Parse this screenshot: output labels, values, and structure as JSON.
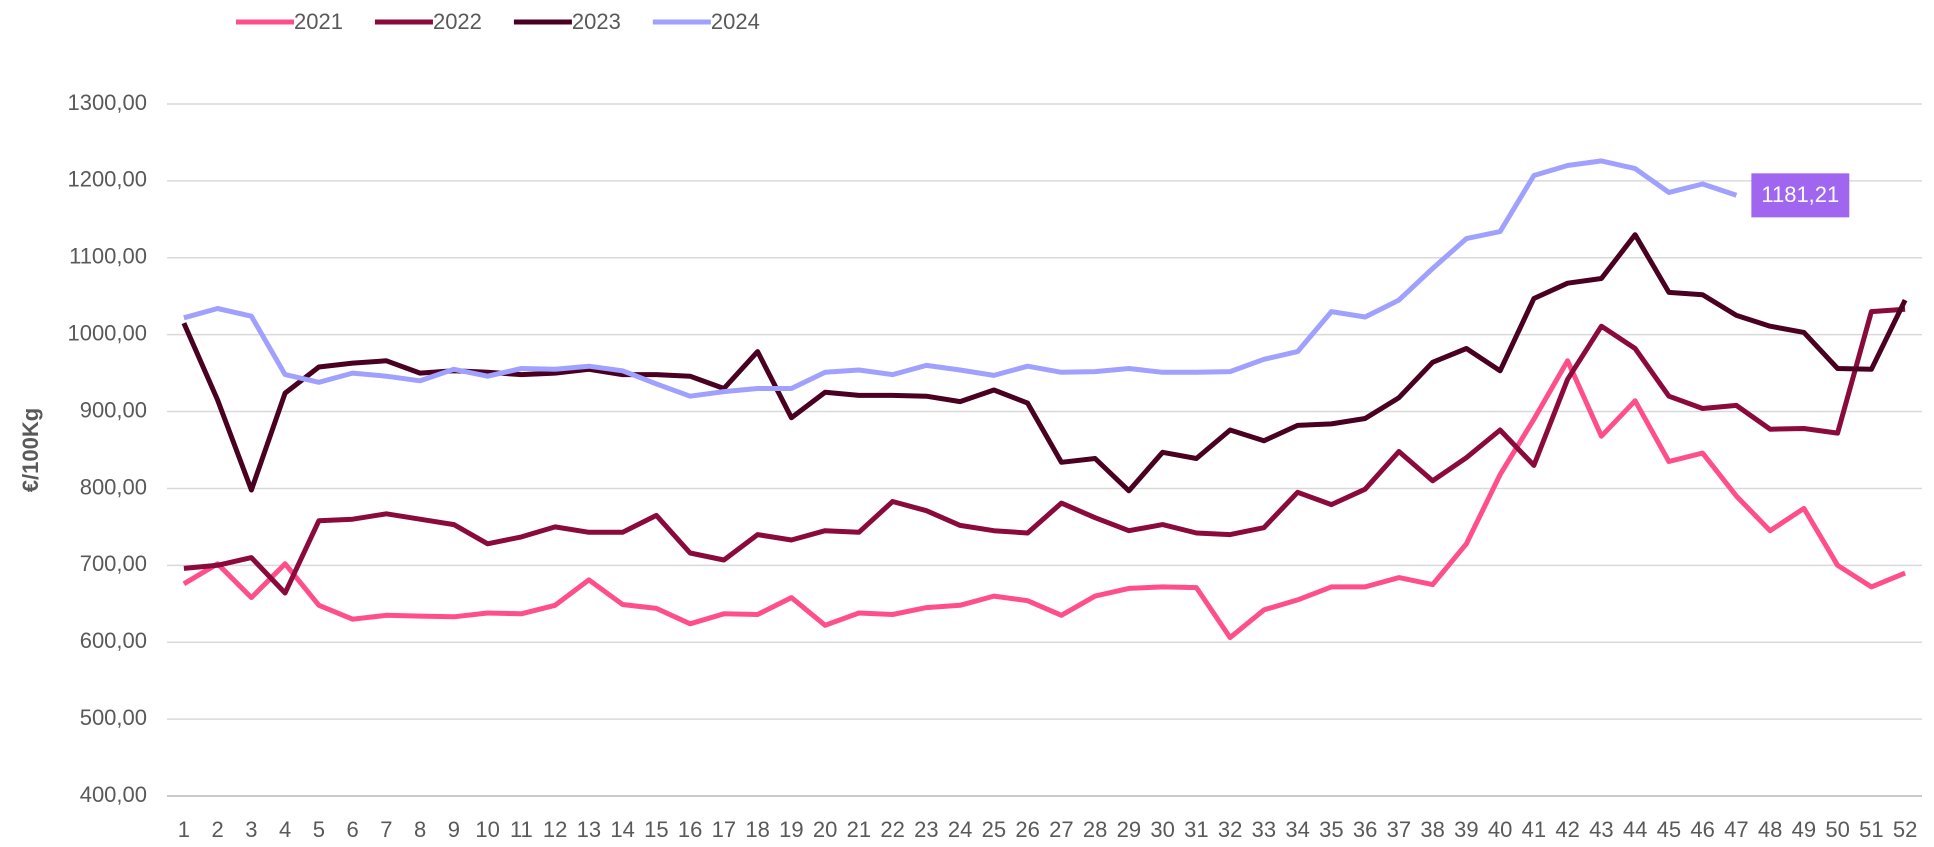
{
  "chart_data": {
    "type": "line",
    "y_label": "€/100Kg",
    "x": [
      1,
      2,
      3,
      4,
      5,
      6,
      7,
      8,
      9,
      10,
      11,
      12,
      13,
      14,
      15,
      16,
      17,
      18,
      19,
      20,
      21,
      22,
      23,
      24,
      25,
      26,
      27,
      28,
      29,
      30,
      31,
      32,
      33,
      34,
      35,
      36,
      37,
      38,
      39,
      40,
      41,
      42,
      43,
      44,
      45,
      46,
      47,
      48,
      49,
      50,
      51,
      52
    ],
    "ylim": [
      400,
      1300
    ],
    "yticks": [
      {
        "value": 400,
        "label": "400,00"
      },
      {
        "value": 500,
        "label": "500,00"
      },
      {
        "value": 600,
        "label": "600,00"
      },
      {
        "value": 700,
        "label": "700,00"
      },
      {
        "value": 800,
        "label": "800,00"
      },
      {
        "value": 900,
        "label": "900,00"
      },
      {
        "value": 1000,
        "label": "1000,00"
      },
      {
        "value": 1100,
        "label": "1100,00"
      },
      {
        "value": 1200,
        "label": "1200,00"
      },
      {
        "value": 1300,
        "label": "1300,00"
      }
    ],
    "grid": true,
    "legend": "top-left",
    "series": [
      {
        "name": "2021",
        "color": "#ff4f8b",
        "values": [
          676,
          702,
          658,
          702,
          648,
          630,
          635,
          634,
          633,
          638,
          637,
          648,
          681,
          649,
          644,
          624,
          637,
          636,
          658,
          622,
          638,
          636,
          645,
          648,
          660,
          654,
          635,
          660,
          670,
          672,
          671,
          606,
          642,
          655,
          672,
          672,
          684,
          675,
          728,
          818,
          890,
          966,
          868,
          914,
          835,
          846,
          790,
          745,
          774,
          700,
          672,
          690
        ]
      },
      {
        "name": "2022",
        "color": "#8b0a3c",
        "values": [
          696,
          700,
          710,
          664,
          758,
          760,
          767,
          760,
          753,
          728,
          737,
          750,
          743,
          743,
          765,
          716,
          707,
          740,
          733,
          745,
          743,
          783,
          771,
          752,
          745,
          742,
          781,
          762,
          745,
          753,
          742,
          740,
          749,
          795,
          779,
          799,
          848,
          810,
          840,
          876,
          830,
          942,
          1011,
          982,
          920,
          904,
          908,
          877,
          878,
          872,
          1030,
          1033
        ]
      },
      {
        "name": "2023",
        "color": "#4a0020",
        "values": [
          1015,
          915,
          798,
          924,
          958,
          963,
          966,
          950,
          953,
          951,
          948,
          950,
          955,
          948,
          948,
          946,
          930,
          978,
          892,
          925,
          921,
          921,
          920,
          913,
          928,
          911,
          834,
          839,
          797,
          847,
          839,
          876,
          862,
          882,
          884,
          891,
          918,
          964,
          982,
          953,
          1047,
          1067,
          1073,
          1130,
          1055,
          1052,
          1025,
          1011,
          1003,
          956,
          955,
          1045
        ]
      },
      {
        "name": "2024",
        "color": "#a0a0ff",
        "values": [
          1022,
          1034,
          1024,
          948,
          938,
          950,
          946,
          940,
          955,
          946,
          956,
          955,
          959,
          953,
          936,
          920,
          926,
          930,
          930,
          951,
          954,
          948,
          960,
          954,
          947,
          959,
          951,
          952,
          956,
          951,
          951,
          952,
          968,
          978,
          1030,
          1023,
          1045,
          1086,
          1125,
          1134,
          1207,
          1220,
          1226,
          1216,
          1185,
          1196,
          1181.21,
          null,
          null,
          null,
          null,
          null
        ],
        "value_labels": [
          null,
          null,
          null,
          null,
          null,
          null,
          null,
          null,
          null,
          null,
          null,
          null,
          null,
          null,
          null,
          null,
          null,
          null,
          null,
          null,
          null,
          null,
          null,
          null,
          null,
          null,
          null,
          null,
          null,
          null,
          null,
          null,
          null,
          null,
          null,
          null,
          null,
          null,
          null,
          null,
          null,
          null,
          null,
          null,
          null,
          null,
          "1181,21",
          null,
          null,
          null,
          null,
          null
        ],
        "label_color": "#a066f0"
      }
    ]
  }
}
